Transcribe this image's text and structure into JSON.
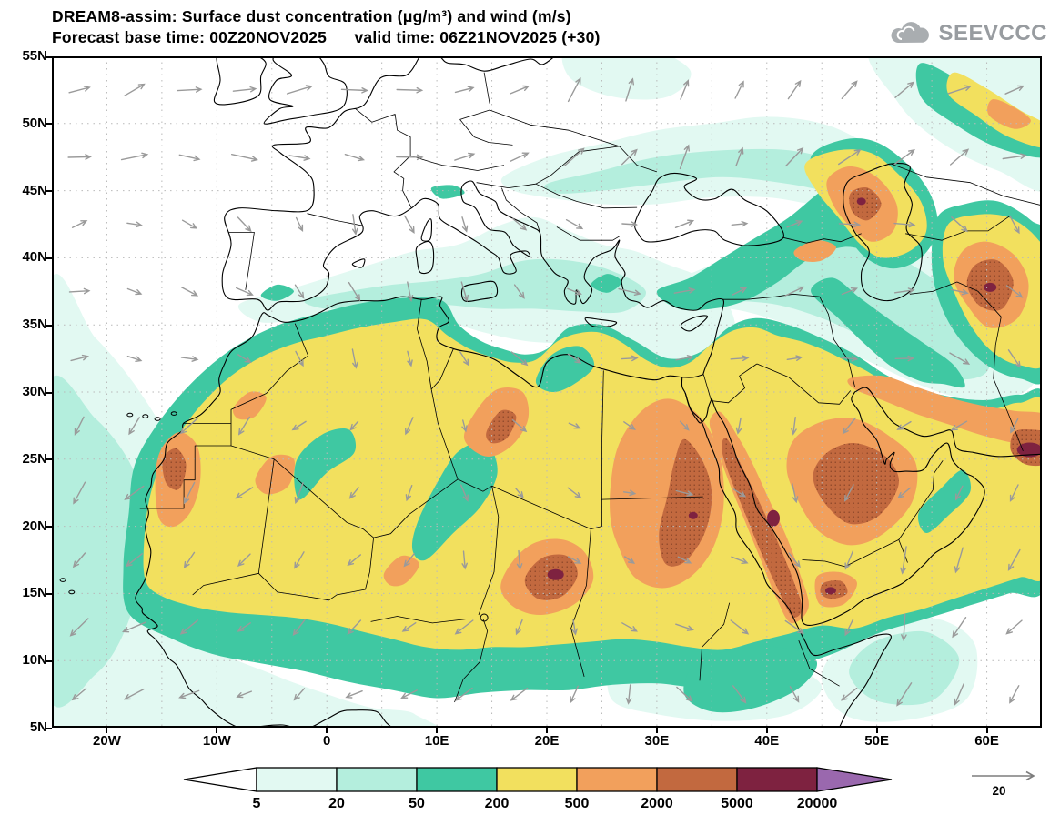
{
  "header": {
    "title_line1": "DREAM8-assim: Surface dust concentration (μg/m³) and wind (m/s)",
    "title_line2": "Forecast base time: 00Z20NOV2025      valid time: 06Z21NOV2025 (+30)",
    "logo_text": "SEEVCCC"
  },
  "map": {
    "lat_ticks": [
      "55N",
      "50N",
      "45N",
      "40N",
      "35N",
      "30N",
      "25N",
      "20N",
      "15N",
      "10N",
      "5N"
    ],
    "lon_ticks": [
      "20W",
      "10W",
      "0",
      "10E",
      "20E",
      "30E",
      "40E",
      "50E",
      "60E"
    ]
  },
  "wind_ref": {
    "label": "20"
  },
  "chart_data": {
    "type": "heatmap",
    "title": "DREAM8-assim: Surface dust concentration (μg/m³) and wind (m/s)",
    "forecast_base_time": "00Z20NOV2025",
    "valid_time": "06Z21NOV2025",
    "forecast_hour": "+30",
    "x": {
      "label": "longitude",
      "range_deg": [
        -25,
        65
      ],
      "ticks": [
        "20W",
        "10W",
        "0",
        "10E",
        "20E",
        "30E",
        "40E",
        "50E",
        "60E"
      ]
    },
    "y": {
      "label": "latitude",
      "range_deg": [
        5,
        55
      ],
      "ticks": [
        "5N",
        "10N",
        "15N",
        "20N",
        "25N",
        "30N",
        "35N",
        "40N",
        "45N",
        "50N",
        "55N"
      ]
    },
    "colorbar": {
      "units": "μg/m³",
      "levels": [
        5,
        20,
        50,
        200,
        500,
        2000,
        5000,
        20000
      ],
      "cell_colors": [
        "#e2f9f2",
        "#b4eedd",
        "#3fc8a2",
        "#f2e05e",
        "#f2a05c",
        "#c2693f",
        "#7e2240"
      ],
      "under_color": "#ffffff",
      "over_color": "#9a68ae",
      "outline_color": "#000000"
    },
    "wind": {
      "units": "m/s",
      "reference_speed": 20,
      "arrow_color": "#9a9a9a"
    },
    "features": [
      "Widespread 200-500 μg/m³ dust across the Sahara, Sahel and Arabian Peninsula",
      "500-2000 μg/m³ cores over the Western Sahara coast, central Libya, Chad/Darfur, Egypt-Sudan/Red Sea hills, Hejaz mountains, eastern Arabia, Yemen, near the Caspian and far-east edge",
      "Isolated >5000 μg/m³ maxima (Bodele region, Red Sea coast, eastern edge near 25N)",
      "5-50 μg/m³ fringes over the eastern Atlantic, Mediterranean, eastern Europe, Caucasus and southwest Asia",
      "Gray wind vectors overlaid on the whole domain, reference arrow 20 m/s"
    ]
  }
}
